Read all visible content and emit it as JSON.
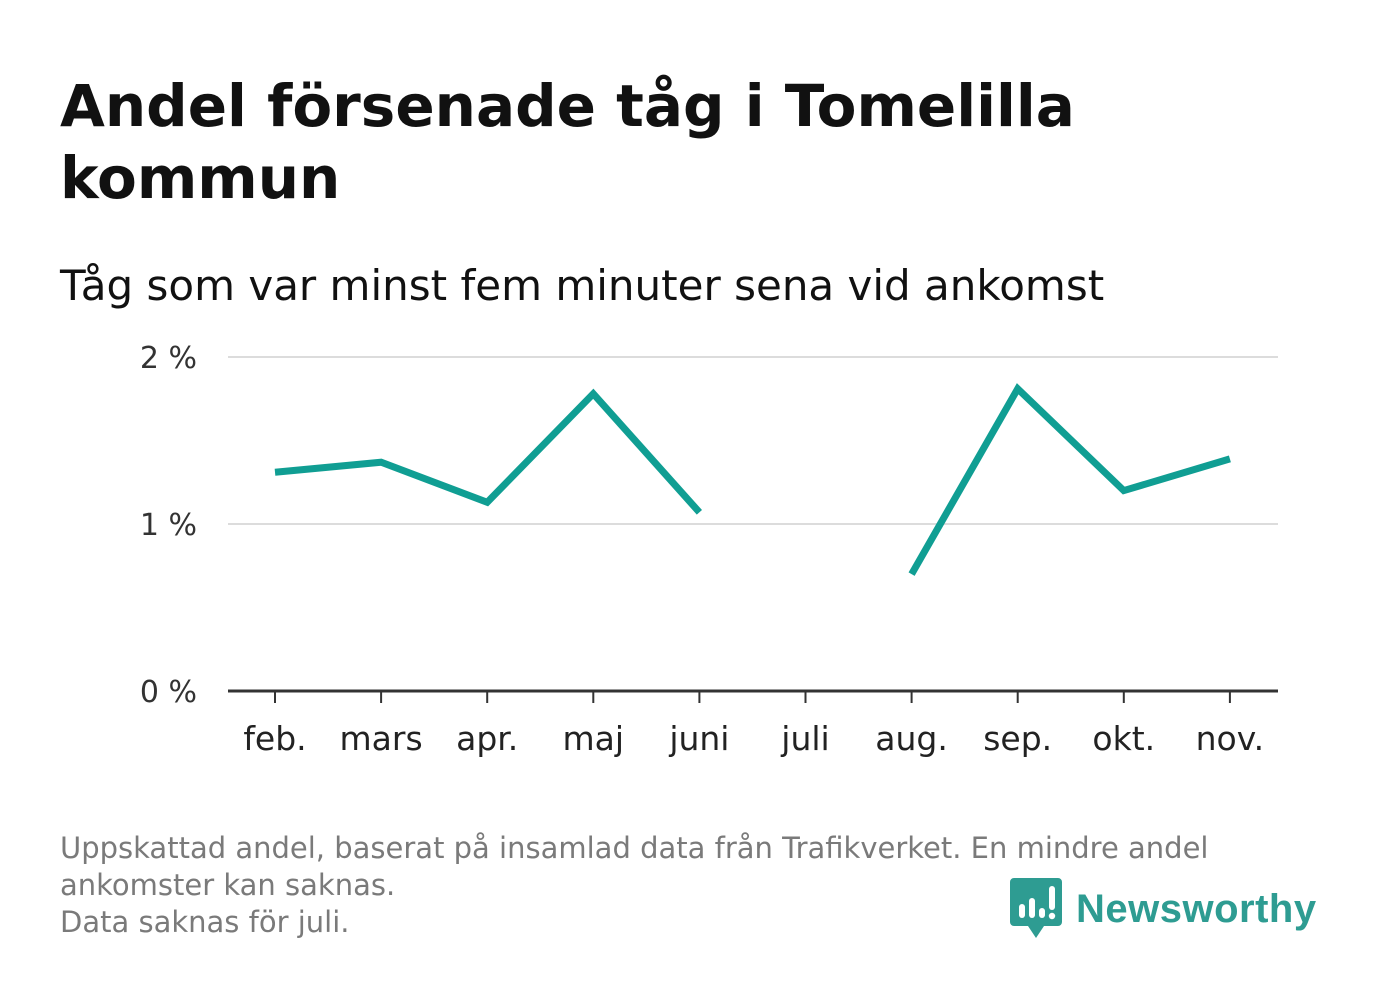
{
  "title": "Andel försenade tåg i Tomelilla kommun",
  "subtitle": "Tåg som var minst fem minuter sena vid ankomst",
  "chart_data": {
    "type": "line",
    "categories": [
      "feb.",
      "mars",
      "apr.",
      "maj",
      "juni",
      "juli",
      "aug.",
      "sep.",
      "okt.",
      "nov."
    ],
    "series": [
      {
        "values": [
          1.31,
          1.37,
          1.13,
          1.78,
          1.07,
          null,
          0.7,
          1.81,
          1.2,
          1.39
        ],
        "color": "#109e93"
      }
    ],
    "yticks": [
      {
        "value": 0,
        "label": "0 %"
      },
      {
        "value": 1,
        "label": "1 %"
      },
      {
        "value": 2,
        "label": "2 %"
      }
    ],
    "ylim": [
      0,
      2
    ],
    "grid": true,
    "xlabel": "",
    "ylabel": ""
  },
  "notes": [
    "Uppskattad andel, baserat på insamlad data från Trafikverket. En mindre andel",
    "ankomster kan saknas.",
    "Data saknas för juli."
  ],
  "brand": {
    "name": "Newsworthy",
    "color": "#2e9c92",
    "icon": "newsworthy-logo-icon"
  }
}
